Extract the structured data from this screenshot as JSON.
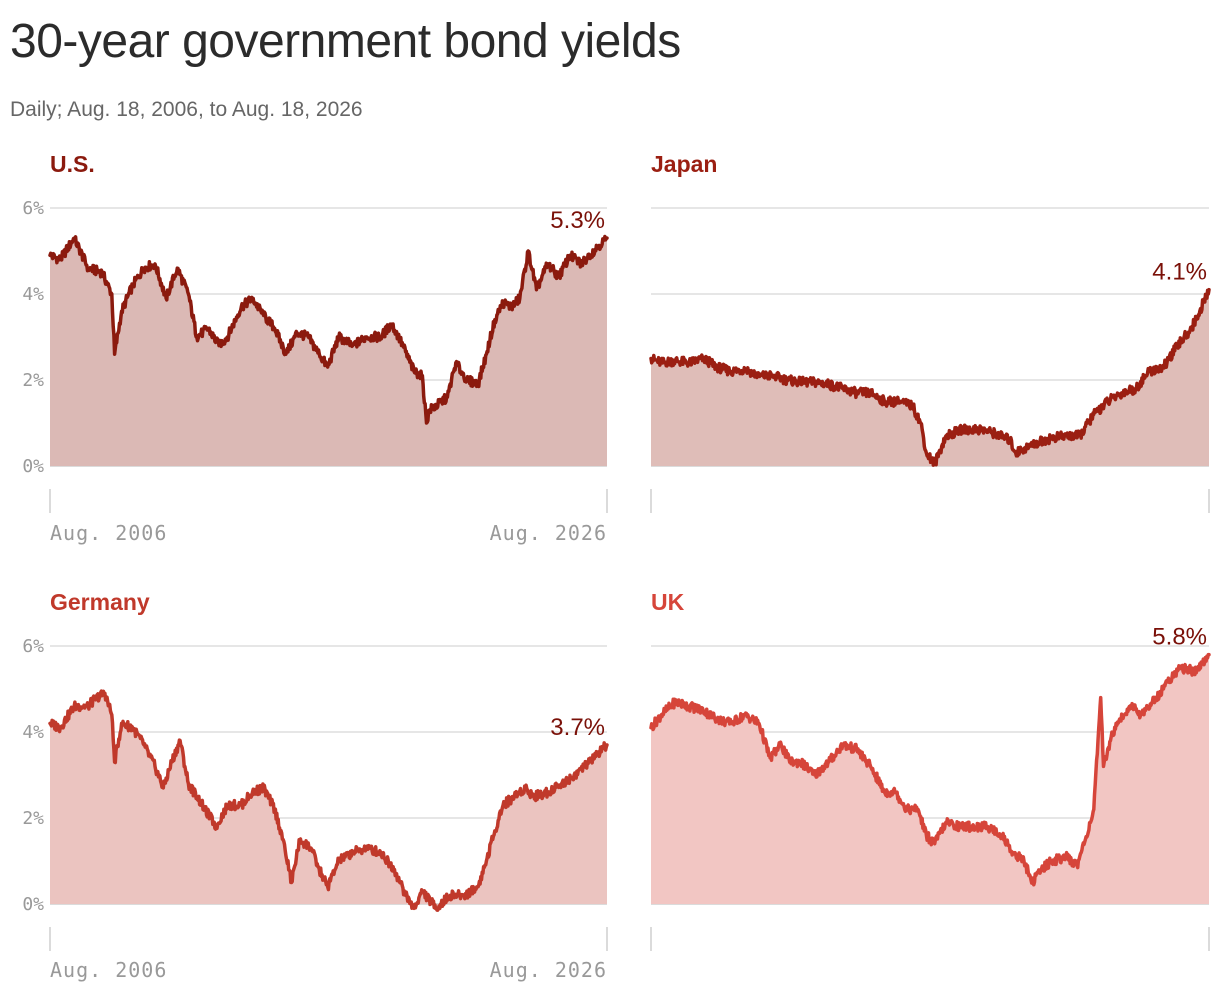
{
  "title": "30-year government bond yields",
  "subtitle": "Daily; Aug. 18, 2006, to Aug. 18, 2026",
  "chart_data": [
    {
      "type": "area",
      "title": "U.S.",
      "color": "#8b1a0e",
      "fill": "#dbb9b5",
      "title_color": "#8b1a0e",
      "label_color": "#7a1008",
      "x_labels": [
        "Aug. 2006",
        "Aug. 2026"
      ],
      "y_ticks": [
        "6%",
        "4%",
        "2%",
        "0%"
      ],
      "ylim": [
        0,
        6
      ],
      "end_label": "5.3%",
      "x": [
        2006.63,
        2007.0,
        2007.5,
        2008.0,
        2008.5,
        2008.85,
        2008.95,
        2009.2,
        2009.6,
        2010.0,
        2010.4,
        2010.8,
        2011.2,
        2011.6,
        2011.9,
        2012.3,
        2012.7,
        2013.0,
        2013.5,
        2013.9,
        2014.3,
        2014.7,
        2015.1,
        2015.5,
        2015.9,
        2016.3,
        2016.6,
        2017.0,
        2017.5,
        2018.0,
        2018.5,
        2018.9,
        2019.3,
        2019.7,
        2020.0,
        2020.15,
        2020.25,
        2020.5,
        2020.9,
        2021.2,
        2021.6,
        2022.0,
        2022.3,
        2022.6,
        2022.9,
        2023.2,
        2023.5,
        2023.8,
        2024.1,
        2024.5,
        2024.9,
        2025.3,
        2025.7,
        2026.0,
        2026.3,
        2026.63
      ],
      "values": [
        4.9,
        4.8,
        5.3,
        4.6,
        4.5,
        4.0,
        2.6,
        3.6,
        4.2,
        4.6,
        4.7,
        3.9,
        4.6,
        4.0,
        3.0,
        3.2,
        2.8,
        3.0,
        3.7,
        3.9,
        3.5,
        3.2,
        2.6,
        3.1,
        3.0,
        2.6,
        2.3,
        3.0,
        2.8,
        3.0,
        3.0,
        3.3,
        2.8,
        2.2,
        2.1,
        1.0,
        1.3,
        1.4,
        1.6,
        2.4,
        2.0,
        1.9,
        2.6,
        3.4,
        3.8,
        3.7,
        3.9,
        5.0,
        4.1,
        4.7,
        4.4,
        4.9,
        4.7,
        4.9,
        5.1,
        5.3
      ]
    },
    {
      "type": "area",
      "title": "Japan",
      "color": "#9b1f12",
      "fill": "#dfbdb8",
      "title_color": "#9b1f12",
      "label_color": "#7a1008",
      "x_labels": [],
      "y_ticks": [],
      "ylim": [
        0,
        6
      ],
      "end_label": "4.1%",
      "x": [
        2006.63,
        2007.0,
        2007.5,
        2008.0,
        2008.5,
        2009.0,
        2009.5,
        2010.0,
        2010.5,
        2011.0,
        2011.5,
        2012.0,
        2012.5,
        2013.0,
        2013.5,
        2014.0,
        2014.5,
        2015.0,
        2015.5,
        2016.0,
        2016.3,
        2016.5,
        2016.8,
        2017.2,
        2017.8,
        2018.5,
        2019.0,
        2019.5,
        2019.7,
        2020.0,
        2020.5,
        2021.0,
        2021.5,
        2022.0,
        2022.5,
        2023.0,
        2023.5,
        2024.0,
        2024.5,
        2025.0,
        2025.5,
        2026.0,
        2026.3,
        2026.63
      ],
      "values": [
        2.5,
        2.4,
        2.45,
        2.4,
        2.5,
        2.3,
        2.2,
        2.25,
        2.1,
        2.1,
        2.0,
        1.95,
        1.95,
        1.9,
        1.8,
        1.7,
        1.7,
        1.5,
        1.5,
        1.4,
        1.0,
        0.3,
        0.05,
        0.7,
        0.85,
        0.85,
        0.75,
        0.6,
        0.3,
        0.4,
        0.55,
        0.65,
        0.7,
        0.7,
        1.2,
        1.5,
        1.7,
        1.8,
        2.2,
        2.3,
        2.8,
        3.2,
        3.6,
        4.1
      ]
    },
    {
      "type": "area",
      "title": "Germany",
      "color": "#c0392b",
      "fill": "#ebc4c0",
      "title_color": "#c0392b",
      "label_color": "#7a1008",
      "x_labels": [
        "Aug. 2006",
        "Aug. 2026"
      ],
      "y_ticks": [
        "6%",
        "4%",
        "2%",
        "0%"
      ],
      "ylim": [
        -0.5,
        6
      ],
      "end_label": "3.7%",
      "x": [
        2006.63,
        2007.0,
        2007.5,
        2008.0,
        2008.3,
        2008.6,
        2008.85,
        2008.95,
        2009.2,
        2009.6,
        2010.0,
        2010.4,
        2010.7,
        2011.0,
        2011.3,
        2011.6,
        2011.9,
        2012.2,
        2012.6,
        2013.0,
        2013.5,
        2013.9,
        2014.3,
        2014.7,
        2015.0,
        2015.3,
        2015.6,
        2016.0,
        2016.3,
        2016.6,
        2017.0,
        2017.5,
        2018.0,
        2018.5,
        2019.0,
        2019.4,
        2019.7,
        2020.0,
        2020.5,
        2021.0,
        2021.5,
        2022.0,
        2022.3,
        2022.6,
        2022.9,
        2023.3,
        2023.7,
        2024.0,
        2024.5,
        2025.0,
        2025.5,
        2026.0,
        2026.3,
        2026.63
      ],
      "values": [
        4.2,
        4.1,
        4.6,
        4.6,
        4.8,
        4.9,
        4.4,
        3.3,
        4.2,
        4.1,
        3.7,
        3.2,
        2.7,
        3.3,
        3.8,
        2.8,
        2.5,
        2.2,
        1.8,
        2.3,
        2.3,
        2.6,
        2.7,
        2.2,
        1.5,
        0.5,
        1.5,
        1.3,
        0.8,
        0.4,
        1.0,
        1.2,
        1.3,
        1.2,
        0.8,
        0.2,
        -0.1,
        0.3,
        -0.1,
        0.2,
        0.2,
        0.4,
        1.0,
        1.7,
        2.3,
        2.5,
        2.7,
        2.5,
        2.6,
        2.8,
        3.0,
        3.3,
        3.5,
        3.7
      ]
    },
    {
      "type": "area",
      "title": "UK",
      "color": "#d6453a",
      "fill": "#f2c6c3",
      "title_color": "#d6453a",
      "label_color": "#7a1008",
      "x_labels": [],
      "y_ticks": [],
      "ylim": [
        -0.5,
        6
      ],
      "end_label": "5.8%",
      "x": [
        2006.63,
        2007.0,
        2007.5,
        2008.0,
        2008.5,
        2009.0,
        2009.5,
        2010.0,
        2010.5,
        2010.9,
        2011.3,
        2011.6,
        2012.0,
        2012.5,
        2013.0,
        2013.5,
        2014.0,
        2014.5,
        2015.0,
        2015.4,
        2015.8,
        2016.2,
        2016.5,
        2016.8,
        2017.2,
        2017.7,
        2018.2,
        2018.7,
        2019.2,
        2019.6,
        2020.0,
        2020.3,
        2020.6,
        2021.0,
        2021.5,
        2021.9,
        2022.2,
        2022.5,
        2022.75,
        2022.85,
        2023.0,
        2023.3,
        2023.6,
        2023.9,
        2024.2,
        2024.6,
        2025.0,
        2025.4,
        2025.8,
        2026.1,
        2026.4,
        2026.63
      ],
      "values": [
        4.1,
        4.4,
        4.7,
        4.6,
        4.5,
        4.3,
        4.2,
        4.4,
        4.2,
        3.4,
        3.7,
        3.3,
        3.3,
        3.0,
        3.3,
        3.7,
        3.6,
        3.2,
        2.6,
        2.6,
        2.2,
        2.2,
        1.6,
        1.4,
        1.9,
        1.8,
        1.8,
        1.8,
        1.6,
        1.2,
        1.0,
        0.5,
        0.8,
        1.0,
        1.1,
        0.9,
        1.5,
        2.2,
        4.8,
        3.2,
        3.6,
        4.2,
        4.4,
        4.6,
        4.4,
        4.7,
        5.0,
        5.4,
        5.5,
        5.4,
        5.6,
        5.8
      ]
    }
  ]
}
